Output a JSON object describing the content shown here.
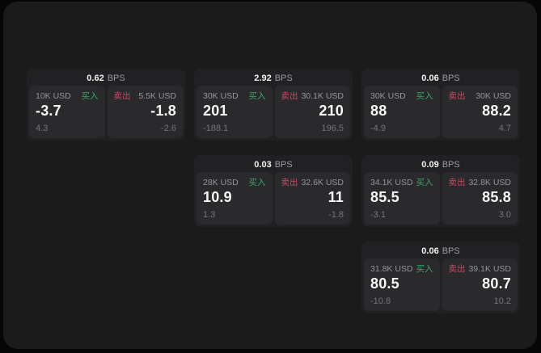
{
  "colors": {
    "buy_green": "#3aa568",
    "sell_red": "#c44b63",
    "panel_bg": "#1b1b1c",
    "card_bg": "#212123",
    "tile_bg": "#2a2a2c"
  },
  "labels": {
    "bps_unit": "BPS",
    "buy": "买入",
    "sell": "卖出"
  },
  "cards": [
    {
      "row": 1,
      "col": 1,
      "bps": "0.62",
      "buy": {
        "size": "10K USD",
        "value": "-3.7",
        "sub": "4.3"
      },
      "sell": {
        "size": "5.5K USD",
        "value": "-1.8",
        "sub": "-2.6"
      }
    },
    {
      "row": 1,
      "col": 2,
      "bps": "2.92",
      "buy": {
        "size": "30K USD",
        "value": "201",
        "sub": "-188.1"
      },
      "sell": {
        "size": "30.1K USD",
        "value": "210",
        "sub": "196.5"
      }
    },
    {
      "row": 1,
      "col": 3,
      "bps": "0.06",
      "buy": {
        "size": "30K USD",
        "value": "88",
        "sub": "-4.9"
      },
      "sell": {
        "size": "30K USD",
        "value": "88.2",
        "sub": "4.7"
      }
    },
    {
      "row": 2,
      "col": 2,
      "bps": "0.03",
      "buy": {
        "size": "28K USD",
        "value": "10.9",
        "sub": "1.3"
      },
      "sell": {
        "size": "32.6K USD",
        "value": "11",
        "sub": "-1.8"
      }
    },
    {
      "row": 2,
      "col": 3,
      "bps": "0.09",
      "buy": {
        "size": "34.1K USD",
        "value": "85.5",
        "sub": "-3.1"
      },
      "sell": {
        "size": "32.8K USD",
        "value": "85.8",
        "sub": "3.0"
      }
    },
    {
      "row": 3,
      "col": 3,
      "bps": "0.06",
      "buy": {
        "size": "31.8K USD",
        "value": "80.5",
        "sub": "-10.8"
      },
      "sell": {
        "size": "39.1K USD",
        "value": "80.7",
        "sub": "10.2"
      }
    }
  ]
}
